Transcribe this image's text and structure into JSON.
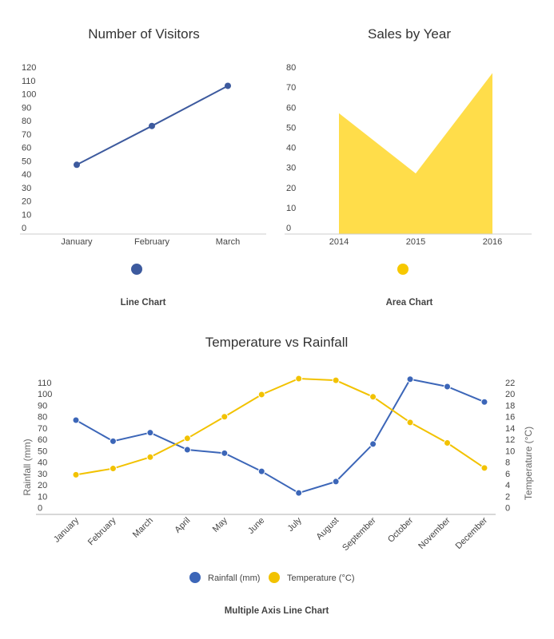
{
  "colors": {
    "line": "#3d5a9e",
    "area": "#ffdd4a",
    "areaLegend": "#f7c800",
    "rain": "#3c66b8",
    "temp": "#f2c200",
    "axis": "#cccccc"
  },
  "chart_data": [
    {
      "type": "line",
      "title": "Number of Visitors",
      "caption": "Line Chart",
      "categories": [
        "January",
        "February",
        "March"
      ],
      "values": [
        47,
        76,
        106
      ],
      "yticks": [
        "0",
        "10",
        "20",
        "30",
        "40",
        "50",
        "60",
        "70",
        "80",
        "90",
        "100",
        "110",
        "120"
      ],
      "ylim": [
        0,
        120
      ],
      "legend": "bottom",
      "grid": false
    },
    {
      "type": "area",
      "title": "Sales by Year",
      "caption": "Area Chart",
      "categories": [
        "2014",
        "2015",
        "2016"
      ],
      "values": [
        57,
        27,
        77
      ],
      "yticks": [
        "0",
        "10",
        "20",
        "30",
        "40",
        "50",
        "60",
        "70",
        "80"
      ],
      "ylim": [
        0,
        80
      ],
      "legend": "bottom",
      "grid": false
    },
    {
      "type": "line",
      "title": "Temperature vs Rainfall",
      "caption": "Multiple Axis Line Chart",
      "categories": [
        "January",
        "February",
        "March",
        "April",
        "May",
        "June",
        "July",
        "August",
        "September",
        "October",
        "November",
        "December"
      ],
      "series": [
        {
          "name": "Rainfall (mm)",
          "axis": "left",
          "values": [
            77,
            58.5,
            66,
            51,
            48,
            32,
            13,
            23,
            56,
            113,
            106.5,
            93
          ]
        },
        {
          "name": "Temperature (°C)",
          "axis": "right",
          "values": [
            5.8,
            6.9,
            8.9,
            12.2,
            16,
            19.9,
            22.7,
            22.4,
            19.5,
            15,
            11.4,
            7
          ]
        }
      ],
      "ylabel": "Rainfall (mm)",
      "ylabel_right": "Temperature (°C)",
      "yticks": [
        "0",
        "10",
        "20",
        "30",
        "40",
        "50",
        "60",
        "70",
        "80",
        "90",
        "100",
        "110"
      ],
      "ylim": [
        0,
        110
      ],
      "yticks_right": [
        "0",
        "2",
        "4",
        "6",
        "8",
        "10",
        "12",
        "14",
        "16",
        "18",
        "20",
        "22"
      ],
      "ylim_right": [
        0,
        22
      ],
      "legend": "bottom",
      "grid": false
    }
  ]
}
